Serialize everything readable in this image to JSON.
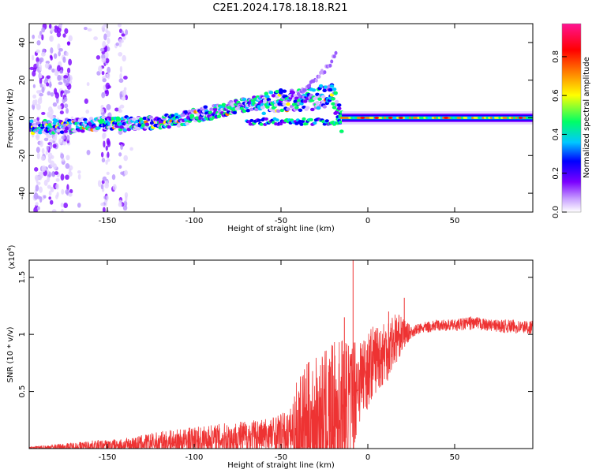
{
  "title": "C2E1.2024.178.18.18.R21",
  "chart_data": [
    {
      "type": "heatmap",
      "xlabel": "Height of straight line (km)",
      "ylabel": "Frequency (Hz)",
      "xlim": [
        -195,
        95
      ],
      "ylim": [
        -50,
        50
      ],
      "xticks": [
        -150,
        -100,
        -50,
        0,
        50
      ],
      "yticks": [
        -40,
        -20,
        0,
        20,
        40
      ],
      "colorbar": {
        "label": "Normalized spectral amplitude",
        "range": [
          0.0,
          0.97
        ],
        "ticks": [
          0.0,
          0.2,
          0.4,
          0.6,
          0.8
        ],
        "colors": [
          "#ffffff",
          "#c8a0ff",
          "#7b00ff",
          "#0000ff",
          "#00c8ff",
          "#00ff66",
          "#ffff00",
          "#ff8000",
          "#ff0000",
          "#ff1493"
        ]
      },
      "ridge": {
        "x": [
          -190,
          -170,
          -150,
          -130,
          -110,
          -90,
          -70,
          -50,
          -35,
          -20,
          -15,
          0,
          10,
          30,
          60,
          90
        ],
        "y": [
          -5,
          -4,
          -3,
          -3,
          -1,
          3,
          7,
          9,
          10,
          12,
          -2,
          -1,
          0,
          0,
          0,
          0
        ]
      },
      "upper_branch": {
        "x": [
          -40,
          -30,
          -22,
          -18
        ],
        "y": [
          12,
          20,
          28,
          36
        ]
      }
    },
    {
      "type": "line",
      "xlabel": "Height of straight line (km)",
      "ylabel": "SNR (10 * v/v)",
      "multiplier": "(x10",
      "multiplier_exp": "4",
      "multiplier_close": ")",
      "xlim": [
        -195,
        95
      ],
      "ylim": [
        0,
        1.65
      ],
      "xticks": [
        -150,
        -100,
        -50,
        0,
        50
      ],
      "yticks": [
        0.5,
        1.0,
        1.5
      ],
      "series_color": "#ee3333",
      "envelope": {
        "x": [
          -195,
          -180,
          -160,
          -140,
          -120,
          -100,
          -80,
          -60,
          -45,
          -40,
          -35,
          -25,
          -15,
          -10,
          -8,
          -5,
          0,
          5,
          10,
          15,
          20,
          25,
          30,
          40,
          50,
          60,
          70,
          80,
          95
        ],
        "base": [
          0.005,
          0.01,
          0.02,
          0.03,
          0.05,
          0.07,
          0.09,
          0.11,
          0.13,
          0.16,
          0.2,
          0.25,
          0.3,
          0.35,
          0.5,
          0.6,
          0.7,
          0.8,
          0.85,
          0.95,
          1.0,
          1.02,
          1.05,
          1.08,
          1.08,
          1.1,
          1.08,
          1.07,
          1.06
        ],
        "amp": [
          0.01,
          0.03,
          0.05,
          0.06,
          0.1,
          0.12,
          0.14,
          0.16,
          0.2,
          0.5,
          0.55,
          0.6,
          0.7,
          0.6,
          0.5,
          0.4,
          0.35,
          0.3,
          0.3,
          0.25,
          0.15,
          0.05,
          0.05,
          0.05,
          0.05,
          0.06,
          0.05,
          0.06,
          0.06
        ]
      },
      "spikes": [
        {
          "x": -8.5,
          "y": 1.65
        },
        {
          "x": 21,
          "y": 1.32
        },
        {
          "x": -13.5,
          "y": 1.15
        },
        {
          "x": 12,
          "y": 1.2
        }
      ]
    }
  ]
}
